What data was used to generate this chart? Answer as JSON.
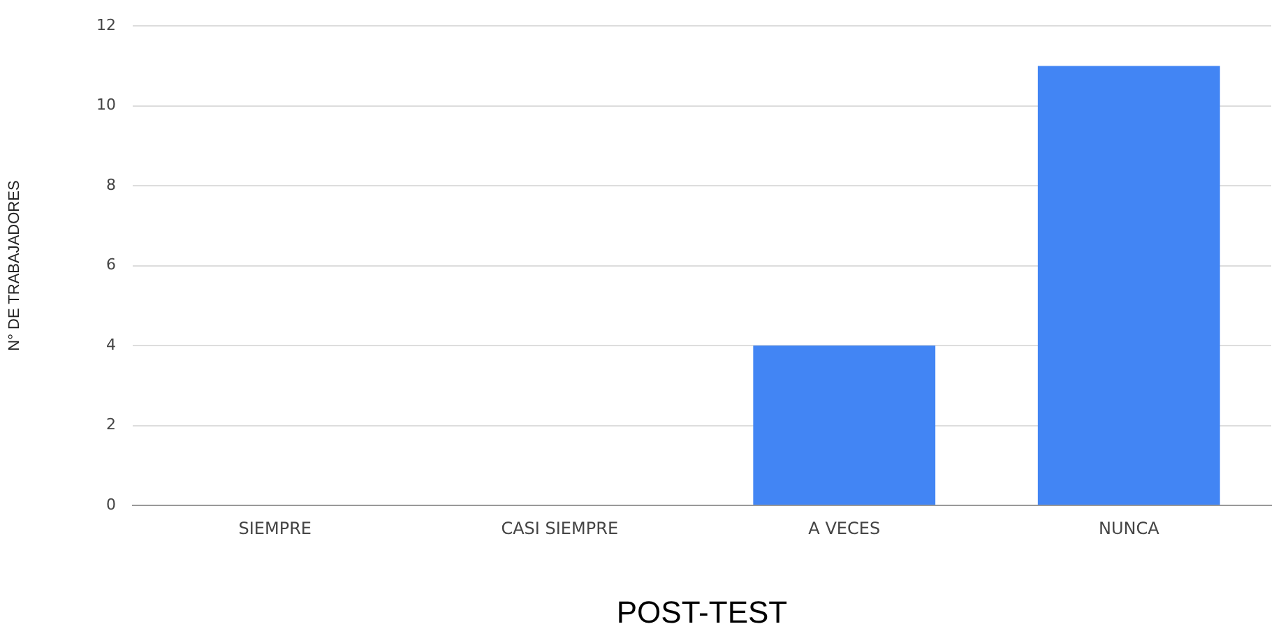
{
  "chart_data": {
    "type": "bar",
    "xlabel": "POST-TEST",
    "ylabel": "N° DE TRABAJADORES",
    "categories": [
      "SIEMPRE",
      "CASI SIEMPRE",
      "A VECES",
      "NUNCA"
    ],
    "values": [
      0,
      0,
      4,
      11
    ],
    "color": "#4285f4",
    "ylim": [
      0,
      12
    ],
    "yticks": [
      0,
      2,
      4,
      6,
      8,
      10,
      12
    ],
    "grid": "y",
    "legend": false
  }
}
